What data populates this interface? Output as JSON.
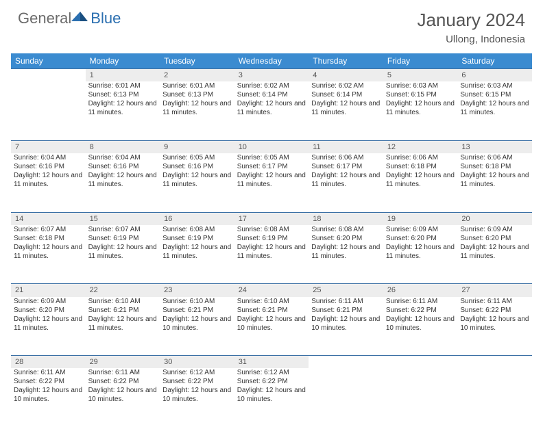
{
  "logo": {
    "general": "General",
    "blue": "Blue"
  },
  "title": "January 2024",
  "location": "Ullong, Indonesia",
  "colors": {
    "header_bg": "#3b8bd0",
    "header_text": "#ffffff",
    "daynum_bg": "#ededed",
    "border": "#3b70a5",
    "text": "#333333",
    "logo_gray": "#6b6b6b",
    "logo_blue": "#2b6fb0"
  },
  "weekdays": [
    "Sunday",
    "Monday",
    "Tuesday",
    "Wednesday",
    "Thursday",
    "Friday",
    "Saturday"
  ],
  "weeks": [
    {
      "nums": [
        "",
        "1",
        "2",
        "3",
        "4",
        "5",
        "6"
      ],
      "cells": [
        null,
        {
          "sunrise": "Sunrise: 6:01 AM",
          "sunset": "Sunset: 6:13 PM",
          "daylight": "Daylight: 12 hours and 11 minutes."
        },
        {
          "sunrise": "Sunrise: 6:01 AM",
          "sunset": "Sunset: 6:13 PM",
          "daylight": "Daylight: 12 hours and 11 minutes."
        },
        {
          "sunrise": "Sunrise: 6:02 AM",
          "sunset": "Sunset: 6:14 PM",
          "daylight": "Daylight: 12 hours and 11 minutes."
        },
        {
          "sunrise": "Sunrise: 6:02 AM",
          "sunset": "Sunset: 6:14 PM",
          "daylight": "Daylight: 12 hours and 11 minutes."
        },
        {
          "sunrise": "Sunrise: 6:03 AM",
          "sunset": "Sunset: 6:15 PM",
          "daylight": "Daylight: 12 hours and 11 minutes."
        },
        {
          "sunrise": "Sunrise: 6:03 AM",
          "sunset": "Sunset: 6:15 PM",
          "daylight": "Daylight: 12 hours and 11 minutes."
        }
      ]
    },
    {
      "nums": [
        "7",
        "8",
        "9",
        "10",
        "11",
        "12",
        "13"
      ],
      "cells": [
        {
          "sunrise": "Sunrise: 6:04 AM",
          "sunset": "Sunset: 6:16 PM",
          "daylight": "Daylight: 12 hours and 11 minutes."
        },
        {
          "sunrise": "Sunrise: 6:04 AM",
          "sunset": "Sunset: 6:16 PM",
          "daylight": "Daylight: 12 hours and 11 minutes."
        },
        {
          "sunrise": "Sunrise: 6:05 AM",
          "sunset": "Sunset: 6:16 PM",
          "daylight": "Daylight: 12 hours and 11 minutes."
        },
        {
          "sunrise": "Sunrise: 6:05 AM",
          "sunset": "Sunset: 6:17 PM",
          "daylight": "Daylight: 12 hours and 11 minutes."
        },
        {
          "sunrise": "Sunrise: 6:06 AM",
          "sunset": "Sunset: 6:17 PM",
          "daylight": "Daylight: 12 hours and 11 minutes."
        },
        {
          "sunrise": "Sunrise: 6:06 AM",
          "sunset": "Sunset: 6:18 PM",
          "daylight": "Daylight: 12 hours and 11 minutes."
        },
        {
          "sunrise": "Sunrise: 6:06 AM",
          "sunset": "Sunset: 6:18 PM",
          "daylight": "Daylight: 12 hours and 11 minutes."
        }
      ]
    },
    {
      "nums": [
        "14",
        "15",
        "16",
        "17",
        "18",
        "19",
        "20"
      ],
      "cells": [
        {
          "sunrise": "Sunrise: 6:07 AM",
          "sunset": "Sunset: 6:18 PM",
          "daylight": "Daylight: 12 hours and 11 minutes."
        },
        {
          "sunrise": "Sunrise: 6:07 AM",
          "sunset": "Sunset: 6:19 PM",
          "daylight": "Daylight: 12 hours and 11 minutes."
        },
        {
          "sunrise": "Sunrise: 6:08 AM",
          "sunset": "Sunset: 6:19 PM",
          "daylight": "Daylight: 12 hours and 11 minutes."
        },
        {
          "sunrise": "Sunrise: 6:08 AM",
          "sunset": "Sunset: 6:19 PM",
          "daylight": "Daylight: 12 hours and 11 minutes."
        },
        {
          "sunrise": "Sunrise: 6:08 AM",
          "sunset": "Sunset: 6:20 PM",
          "daylight": "Daylight: 12 hours and 11 minutes."
        },
        {
          "sunrise": "Sunrise: 6:09 AM",
          "sunset": "Sunset: 6:20 PM",
          "daylight": "Daylight: 12 hours and 11 minutes."
        },
        {
          "sunrise": "Sunrise: 6:09 AM",
          "sunset": "Sunset: 6:20 PM",
          "daylight": "Daylight: 12 hours and 11 minutes."
        }
      ]
    },
    {
      "nums": [
        "21",
        "22",
        "23",
        "24",
        "25",
        "26",
        "27"
      ],
      "cells": [
        {
          "sunrise": "Sunrise: 6:09 AM",
          "sunset": "Sunset: 6:20 PM",
          "daylight": "Daylight: 12 hours and 11 minutes."
        },
        {
          "sunrise": "Sunrise: 6:10 AM",
          "sunset": "Sunset: 6:21 PM",
          "daylight": "Daylight: 12 hours and 11 minutes."
        },
        {
          "sunrise": "Sunrise: 6:10 AM",
          "sunset": "Sunset: 6:21 PM",
          "daylight": "Daylight: 12 hours and 10 minutes."
        },
        {
          "sunrise": "Sunrise: 6:10 AM",
          "sunset": "Sunset: 6:21 PM",
          "daylight": "Daylight: 12 hours and 10 minutes."
        },
        {
          "sunrise": "Sunrise: 6:11 AM",
          "sunset": "Sunset: 6:21 PM",
          "daylight": "Daylight: 12 hours and 10 minutes."
        },
        {
          "sunrise": "Sunrise: 6:11 AM",
          "sunset": "Sunset: 6:22 PM",
          "daylight": "Daylight: 12 hours and 10 minutes."
        },
        {
          "sunrise": "Sunrise: 6:11 AM",
          "sunset": "Sunset: 6:22 PM",
          "daylight": "Daylight: 12 hours and 10 minutes."
        }
      ]
    },
    {
      "nums": [
        "28",
        "29",
        "30",
        "31",
        "",
        "",
        ""
      ],
      "cells": [
        {
          "sunrise": "Sunrise: 6:11 AM",
          "sunset": "Sunset: 6:22 PM",
          "daylight": "Daylight: 12 hours and 10 minutes."
        },
        {
          "sunrise": "Sunrise: 6:11 AM",
          "sunset": "Sunset: 6:22 PM",
          "daylight": "Daylight: 12 hours and 10 minutes."
        },
        {
          "sunrise": "Sunrise: 6:12 AM",
          "sunset": "Sunset: 6:22 PM",
          "daylight": "Daylight: 12 hours and 10 minutes."
        },
        {
          "sunrise": "Sunrise: 6:12 AM",
          "sunset": "Sunset: 6:22 PM",
          "daylight": "Daylight: 12 hours and 10 minutes."
        },
        null,
        null,
        null
      ]
    }
  ]
}
